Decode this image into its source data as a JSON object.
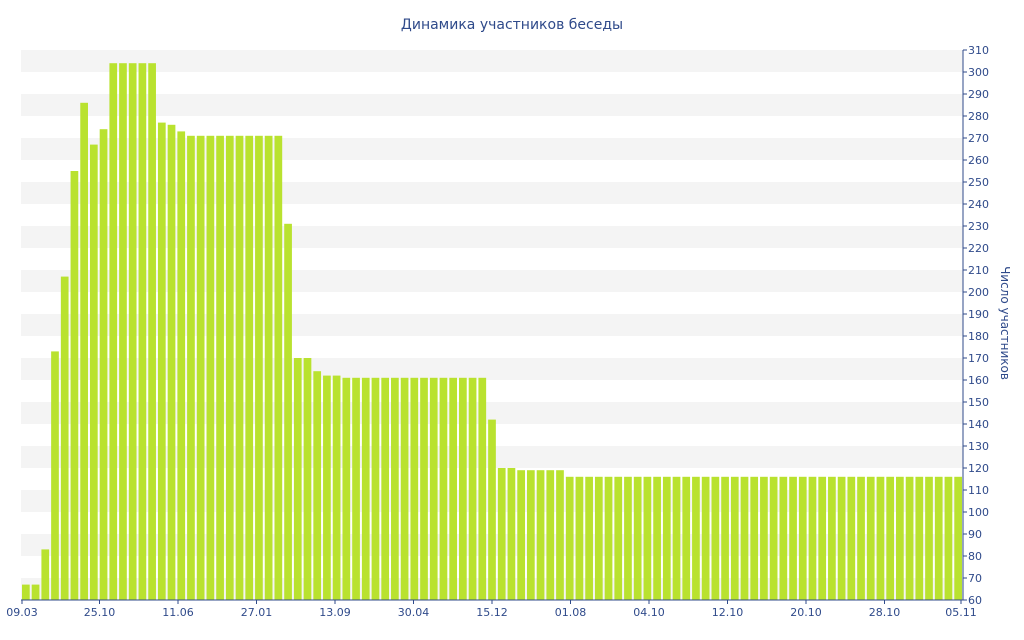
{
  "chart_data": {
    "type": "bar",
    "title": "Динамика участников беседы",
    "ylabel": "Число участников",
    "xlabel": "",
    "ylim": [
      60,
      310
    ],
    "yticks": [
      60,
      70,
      80,
      90,
      100,
      110,
      120,
      130,
      140,
      150,
      160,
      170,
      180,
      190,
      200,
      210,
      220,
      230,
      240,
      250,
      260,
      270,
      280,
      290,
      300,
      310
    ],
    "xtick_labels": [
      "09.03",
      "25.10",
      "11.06",
      "27.01",
      "13.09",
      "30.04",
      "15.12",
      "01.08",
      "04.10",
      "12.10",
      "20.10",
      "28.10",
      "05.11"
    ],
    "grid": "horizontal bands",
    "legend": "none",
    "bar_color": "#b9e22f",
    "band_color": "#f4f4f4",
    "text_color": "#2f4a8a",
    "values": [
      67,
      67,
      83,
      173,
      207,
      255,
      286,
      267,
      274,
      304,
      304,
      304,
      304,
      304,
      277,
      276,
      273,
      271,
      271,
      271,
      271,
      271,
      271,
      271,
      271,
      271,
      271,
      231,
      170,
      170,
      164,
      162,
      162,
      161,
      161,
      161,
      161,
      161,
      161,
      161,
      161,
      161,
      161,
      161,
      161,
      161,
      161,
      161,
      142,
      120,
      120,
      119,
      119,
      119,
      119,
      119,
      116,
      116,
      116,
      116,
      116,
      116,
      116,
      116,
      116,
      116,
      116,
      116,
      116,
      116,
      116,
      116,
      116,
      116,
      116,
      116,
      116,
      116,
      116,
      116,
      116,
      116,
      116,
      116,
      116,
      116,
      116,
      116,
      116,
      116,
      116,
      116,
      116,
      116,
      116,
      116,
      116
    ]
  }
}
